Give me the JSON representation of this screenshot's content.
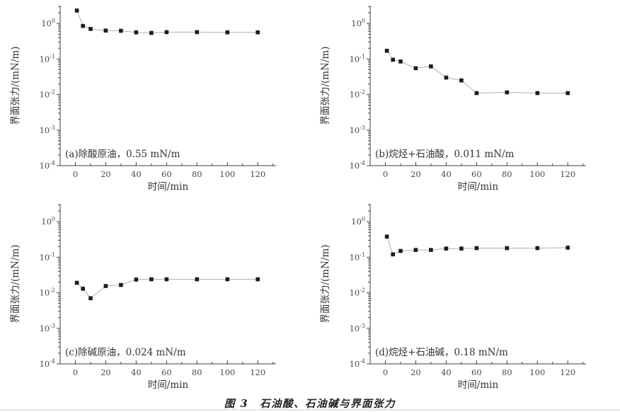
{
  "figure": {
    "caption": "图 3　石油酸、石油碱与界面张力",
    "background": "#ffffff",
    "colors": {
      "axis": "#3f3f3f",
      "tick_text": "#4a4a4a",
      "series_line": "#b0b0b0",
      "marker": "#1c1c1c",
      "annotation_text": "#333333"
    }
  },
  "chart_data": [
    {
      "id": "a",
      "type": "line",
      "annotation": "(a)除酸原油，0.55 mN/m",
      "xlabel": "时间/min",
      "ylabel": "界面张力/(mN/m)",
      "x": [
        1,
        5,
        10,
        20,
        30,
        40,
        50,
        60,
        80,
        100,
        120
      ],
      "y": [
        2.3,
        0.85,
        0.7,
        0.63,
        0.62,
        0.56,
        0.54,
        0.57,
        0.57,
        0.56,
        0.56
      ],
      "xlim": [
        -10,
        132
      ],
      "ylim": [
        0.0001,
        3.16
      ],
      "ylog": true,
      "grid": false,
      "legend": null,
      "marker": "square",
      "xticks": [
        0,
        20,
        40,
        60,
        80,
        100,
        120
      ],
      "x_minor_step": 10,
      "ytick_exponents": [
        0,
        -1,
        -2,
        -3,
        -4
      ]
    },
    {
      "id": "b",
      "type": "line",
      "annotation": "(b)烷烃+石油酸，0.011 mN/m",
      "xlabel": "时间/min",
      "ylabel": "界面张力/(mN/m)",
      "x": [
        1,
        5,
        10,
        20,
        30,
        40,
        50,
        60,
        80,
        100,
        120
      ],
      "y": [
        0.17,
        0.095,
        0.085,
        0.055,
        0.062,
        0.03,
        0.025,
        0.011,
        0.0115,
        0.011,
        0.011
      ],
      "xlim": [
        -10,
        132
      ],
      "ylim": [
        0.0001,
        3.16
      ],
      "ylog": true,
      "grid": false,
      "legend": null,
      "marker": "square",
      "xticks": [
        0,
        20,
        40,
        60,
        80,
        100,
        120
      ],
      "x_minor_step": 10,
      "ytick_exponents": [
        0,
        -1,
        -2,
        -3,
        -4
      ]
    },
    {
      "id": "c",
      "type": "line",
      "annotation": "(c)除碱原油，0.024 mN/m",
      "xlabel": "时间/min",
      "ylabel": "界面张力/(mN/m)",
      "x": [
        1,
        5,
        10,
        20,
        30,
        40,
        50,
        60,
        80,
        100,
        120
      ],
      "y": [
        0.019,
        0.013,
        0.007,
        0.0155,
        0.0165,
        0.0235,
        0.024,
        0.024,
        0.024,
        0.024,
        0.024
      ],
      "xlim": [
        -10,
        132
      ],
      "ylim": [
        0.0001,
        3.16
      ],
      "ylog": true,
      "grid": false,
      "legend": null,
      "marker": "square",
      "xticks": [
        0,
        20,
        40,
        60,
        80,
        100,
        120
      ],
      "x_minor_step": 10,
      "ytick_exponents": [
        0,
        -1,
        -2,
        -3,
        -4
      ]
    },
    {
      "id": "d",
      "type": "line",
      "annotation": "(d)烷烃+石油碱，0.18 mN/m",
      "xlabel": "时间/min",
      "ylabel": "界面张力/(mN/m)",
      "x": [
        1,
        5,
        10,
        20,
        30,
        40,
        50,
        60,
        80,
        100,
        120
      ],
      "y": [
        0.38,
        0.12,
        0.15,
        0.16,
        0.16,
        0.175,
        0.175,
        0.18,
        0.18,
        0.18,
        0.185
      ],
      "xlim": [
        -10,
        132
      ],
      "ylim": [
        0.0001,
        3.16
      ],
      "ylog": true,
      "grid": false,
      "legend": null,
      "marker": "square",
      "xticks": [
        0,
        20,
        40,
        60,
        80,
        100,
        120
      ],
      "x_minor_step": 10,
      "ytick_exponents": [
        0,
        -1,
        -2,
        -3,
        -4
      ]
    }
  ]
}
